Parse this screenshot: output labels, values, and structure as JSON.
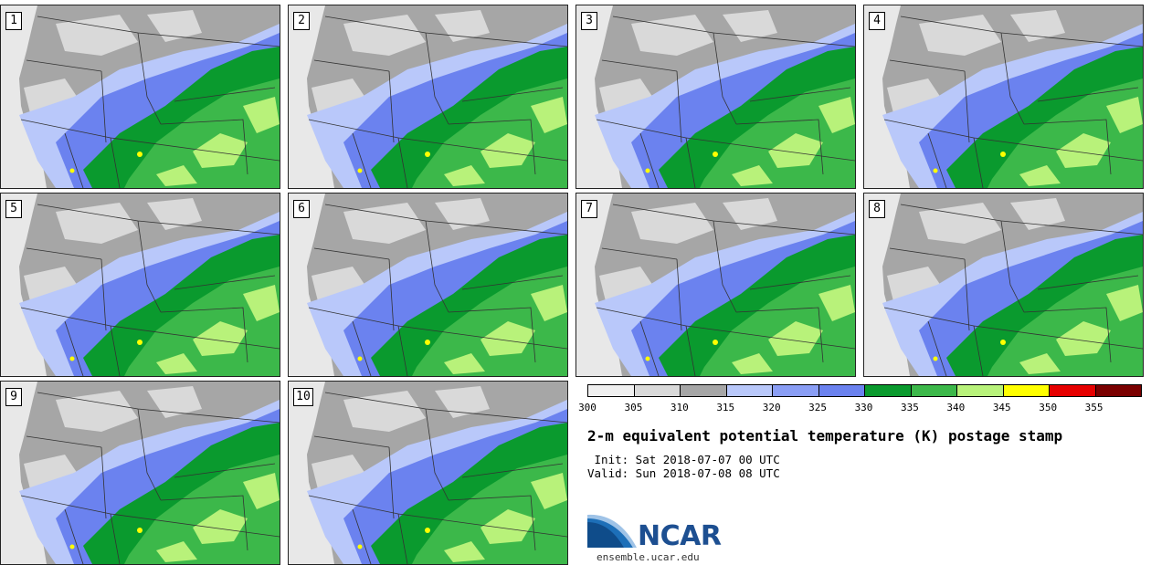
{
  "panels": [
    {
      "label": "1"
    },
    {
      "label": "2"
    },
    {
      "label": "3"
    },
    {
      "label": "4"
    },
    {
      "label": "5"
    },
    {
      "label": "6"
    },
    {
      "label": "7"
    },
    {
      "label": "8"
    },
    {
      "label": "9"
    },
    {
      "label": "10"
    }
  ],
  "colorbar": {
    "ticks": [
      "300",
      "305",
      "310",
      "315",
      "320",
      "325",
      "330",
      "335",
      "340",
      "345",
      "350",
      "355"
    ],
    "colors": [
      "#f0f0f0",
      "#d9d9d9",
      "#a6a6a6",
      "#b9c8fa",
      "#8a9ef5",
      "#6b82ef",
      "#0a9a2e",
      "#3cb84a",
      "#b8f27a",
      "#ffff00",
      "#e60000",
      "#7a0000"
    ]
  },
  "title": "2-m equivalent potential temperature (K) postage stamp",
  "init": " Init: Sat 2018-07-07 00 UTC",
  "valid": "Valid: Sun 2018-07-08 08 UTC",
  "logo": {
    "word": "NCAR",
    "url": "ensemble.ucar.edu"
  },
  "colors": {
    "ocean": "#e8e8e8",
    "gray": "#a6a6a6",
    "lightgray": "#d9d9d9",
    "blue_light": "#b9c8fa",
    "blue": "#6b82ef",
    "green_dark": "#0a9a2e",
    "green": "#3cb84a",
    "green_light": "#b8f27a"
  }
}
